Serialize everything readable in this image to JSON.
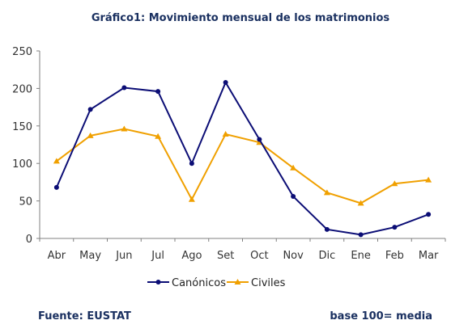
{
  "chart_data": {
    "type": "line",
    "title": "Gráfico1: Movimiento mensual de los matrimonios",
    "categories": [
      "Abr",
      "May",
      "Jun",
      "Jul",
      "Ago",
      "Set",
      "Oct",
      "Nov",
      "Dic",
      "Ene",
      "Feb",
      "Mar"
    ],
    "ylim": [
      0,
      250
    ],
    "yticks": [
      0,
      50,
      100,
      150,
      200,
      250
    ],
    "grid": false,
    "legend_placement": "bottom",
    "series": [
      {
        "name": "Canónicos",
        "color": "#0b0d75",
        "marker": "circle",
        "values": [
          68,
          172,
          201,
          196,
          100,
          208,
          132,
          56,
          12,
          5,
          15,
          32
        ]
      },
      {
        "name": "Civiles",
        "color": "#f0a000",
        "marker": "triangle",
        "values": [
          103,
          137,
          146,
          136,
          52,
          139,
          128,
          94,
          61,
          47,
          73,
          78
        ]
      }
    ]
  },
  "footer": {
    "source": "Fuente: EUSTAT",
    "note": "base 100= media"
  }
}
